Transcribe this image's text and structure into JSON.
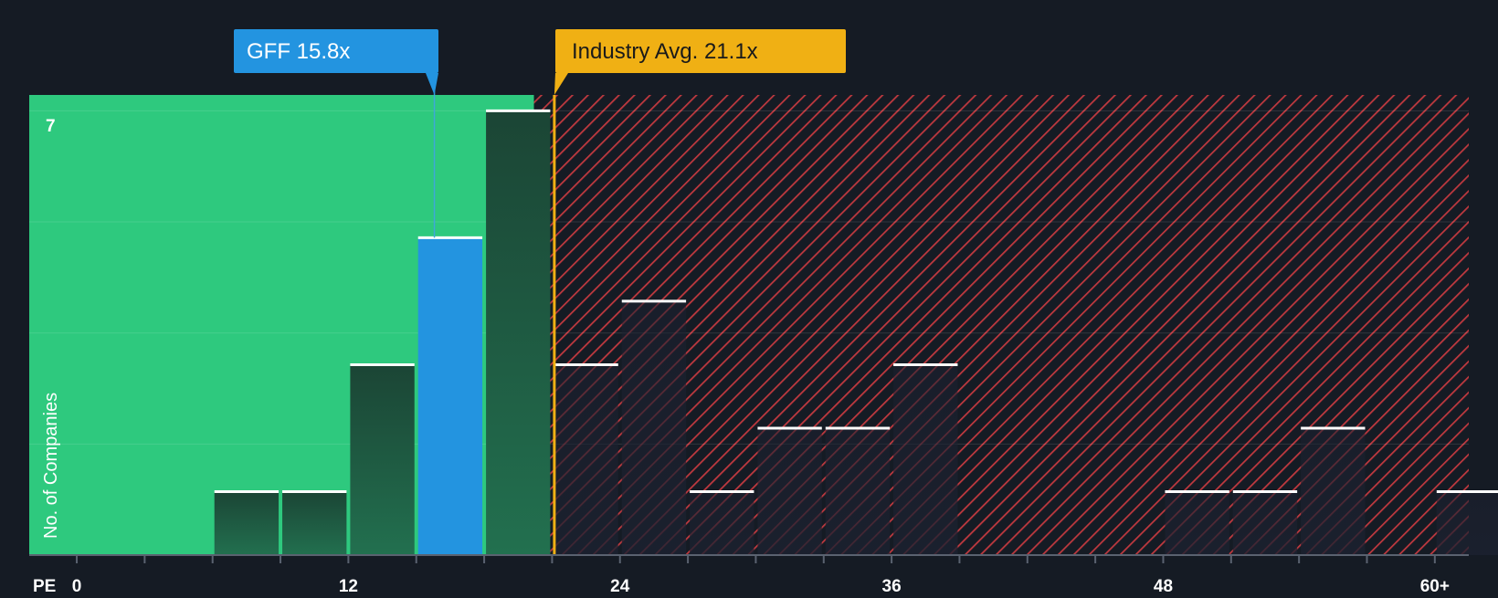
{
  "chart_data": {
    "type": "bar",
    "subtype": "histogram",
    "x_axis_name": "PE",
    "y_axis_label": "No. of Companies",
    "y_top_label": "7",
    "x_ticks": [
      "0",
      "12",
      "24",
      "36",
      "48",
      "60+"
    ],
    "x_tick_values": [
      0,
      12,
      24,
      36,
      48,
      60
    ],
    "xlim": [
      -2.1,
      61.5
    ],
    "ylim": [
      0,
      7.25
    ],
    "bin_width": 3,
    "bins": [
      {
        "start": 6,
        "count": 1,
        "category": "fair"
      },
      {
        "start": 9,
        "count": 1,
        "category": "fair"
      },
      {
        "start": 12,
        "count": 3,
        "category": "fair"
      },
      {
        "start": 15,
        "count": 5,
        "category": "company"
      },
      {
        "start": 18,
        "count": 7,
        "category": "fair"
      },
      {
        "start": 21,
        "count": 3,
        "category": "over"
      },
      {
        "start": 24,
        "count": 4,
        "category": "over"
      },
      {
        "start": 27,
        "count": 1,
        "category": "over"
      },
      {
        "start": 30,
        "count": 2,
        "category": "over"
      },
      {
        "start": 33,
        "count": 2,
        "category": "over"
      },
      {
        "start": 36,
        "count": 3,
        "category": "over"
      },
      {
        "start": 48,
        "count": 1,
        "category": "over"
      },
      {
        "start": 51,
        "count": 1,
        "category": "over"
      },
      {
        "start": 54,
        "count": 2,
        "category": "over"
      },
      {
        "start": 60,
        "count": 1,
        "category": "over"
      }
    ],
    "company": {
      "label": "GFF 15.8x",
      "value": 15.8
    },
    "industry_avg": {
      "label": "Industry Avg. 21.1x",
      "value": 21.1
    },
    "fair_zone_end": 20.2,
    "grid": true,
    "colors": {
      "background": "#151b24",
      "fair_zone": "#2ec97e",
      "company_bar": "#2394e0",
      "fair_bar": "#1d4a3a",
      "over_bar": "#2a2530",
      "over_hatch": "#c0393f",
      "industry_marker": "#f0b014",
      "bar_cap": "#ffffff",
      "axis_text": "#ffffff"
    }
  }
}
